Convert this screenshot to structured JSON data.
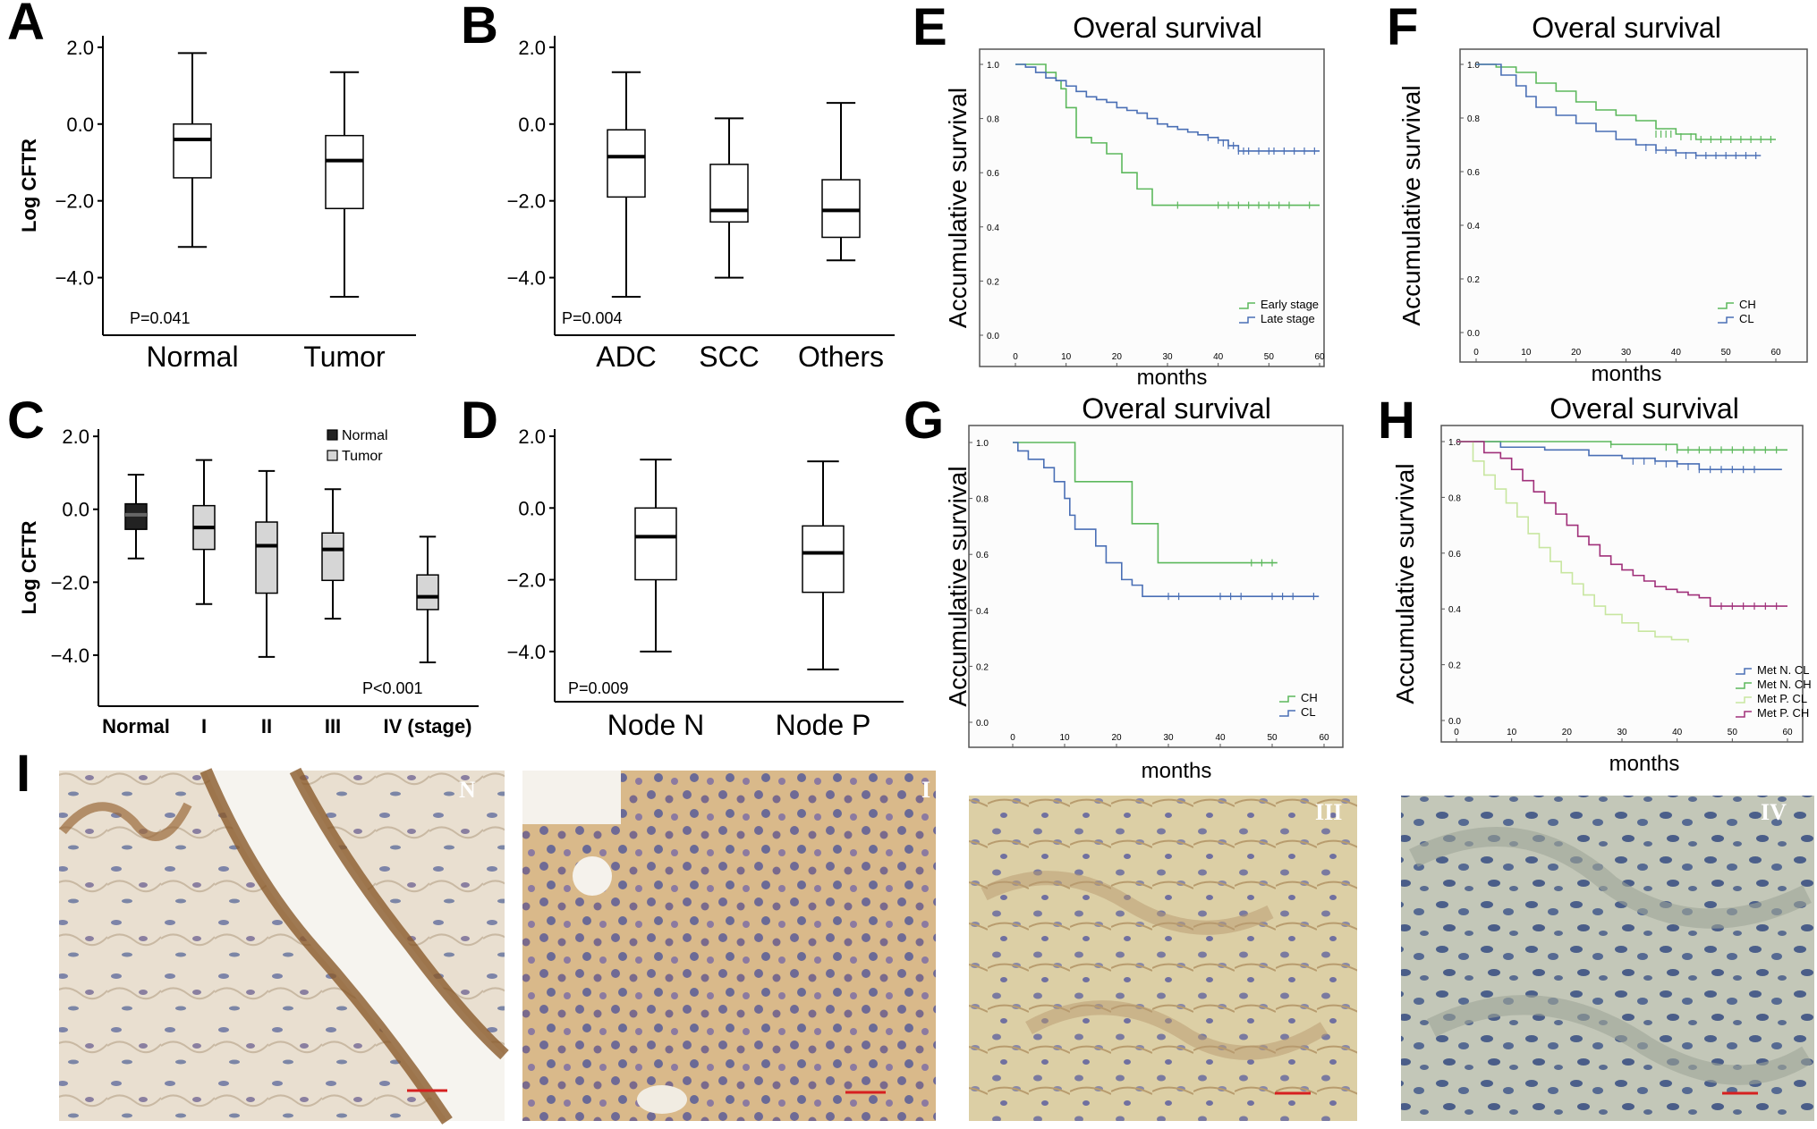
{
  "panel_labels": [
    "A",
    "B",
    "C",
    "D",
    "E",
    "F",
    "G",
    "H",
    "I"
  ],
  "colors": {
    "green": "#5cb85c",
    "blue": "#4a6fb5",
    "lightgreen": "#c8e6a0",
    "magenta": "#a0307a",
    "box_fill_gray": "#d6d6d6",
    "box_fill_dark": "#222222"
  },
  "chart_data": [
    {
      "id": "A",
      "type": "box",
      "xlabel": "",
      "ylabel": "Log CFTR",
      "ylim": [
        -5.5,
        2.3
      ],
      "yticks": [
        -4,
        -2,
        0,
        2
      ],
      "ytick_labels": [
        "−4.0",
        "−2.0",
        "0.0",
        "2.0"
      ],
      "annotation": "P=0.041",
      "categories": [
        "Normal",
        "Tumor"
      ],
      "boxes": [
        {
          "min": -3.2,
          "q1": -1.4,
          "median": -0.4,
          "q3": 0.0,
          "max": 1.85,
          "fill": "none"
        },
        {
          "min": -4.5,
          "q1": -2.2,
          "median": -0.95,
          "q3": -0.3,
          "max": 1.35,
          "fill": "none"
        }
      ]
    },
    {
      "id": "B",
      "type": "box",
      "xlabel": "",
      "ylabel": "",
      "ylim": [
        -5.5,
        2.3
      ],
      "yticks": [
        -4,
        -2,
        0,
        2
      ],
      "ytick_labels": [
        "−4.0",
        "−2.0",
        "0.0",
        "2.0"
      ],
      "annotation": "P=0.004",
      "categories": [
        "ADC",
        "SCC",
        "Others"
      ],
      "boxes": [
        {
          "min": -4.5,
          "q1": -1.9,
          "median": -0.85,
          "q3": -0.15,
          "max": 1.35,
          "fill": "none"
        },
        {
          "min": -4.0,
          "q1": -2.55,
          "median": -2.25,
          "q3": -1.05,
          "max": 0.15,
          "fill": "none"
        },
        {
          "min": -3.55,
          "q1": -2.95,
          "median": -2.25,
          "q3": -1.45,
          "max": 0.55,
          "fill": "none"
        }
      ]
    },
    {
      "id": "C",
      "type": "box",
      "xlabel": "",
      "ylabel": "Log CFTR",
      "ylim": [
        -5.4,
        2.2
      ],
      "yticks": [
        -4,
        -2,
        0,
        2
      ],
      "ytick_labels": [
        "−4.0",
        "−2.0",
        "0.0",
        "2.0"
      ],
      "annotation": "P<0.001",
      "legend": [
        {
          "name": "Normal",
          "fill": "dark"
        },
        {
          "name": "Tumor",
          "fill": "gray"
        }
      ],
      "categories": [
        "Normal",
        "I",
        "II",
        "III",
        "IV (stage)"
      ],
      "boxes": [
        {
          "min": -1.35,
          "q1": -0.55,
          "median": -0.15,
          "q3": 0.15,
          "max": 0.95,
          "fill": "dark"
        },
        {
          "min": -2.6,
          "q1": -1.1,
          "median": -0.5,
          "q3": 0.1,
          "max": 1.35,
          "fill": "gray"
        },
        {
          "min": -4.05,
          "q1": -2.3,
          "median": -1.0,
          "q3": -0.35,
          "max": 1.05,
          "fill": "gray"
        },
        {
          "min": -3.0,
          "q1": -1.95,
          "median": -1.1,
          "q3": -0.65,
          "max": 0.55,
          "fill": "gray"
        },
        {
          "min": -4.2,
          "q1": -2.75,
          "median": -2.4,
          "q3": -1.8,
          "max": -0.75,
          "fill": "gray"
        }
      ]
    },
    {
      "id": "D",
      "type": "box",
      "xlabel": "",
      "ylabel": "",
      "ylim": [
        -5.4,
        2.2
      ],
      "yticks": [
        -4,
        -2,
        0,
        2
      ],
      "ytick_labels": [
        "−4.0",
        "−2.0",
        "0.0",
        "2.0"
      ],
      "annotation": "P=0.009",
      "categories": [
        "Node N",
        "Node P"
      ],
      "boxes": [
        {
          "min": -4.0,
          "q1": -2.0,
          "median": -0.8,
          "q3": 0.0,
          "max": 1.35,
          "fill": "none"
        },
        {
          "min": -4.5,
          "q1": -2.35,
          "median": -1.25,
          "q3": -0.5,
          "max": 1.3,
          "fill": "none"
        }
      ]
    },
    {
      "id": "E",
      "type": "line",
      "title": "Overal survival",
      "xlabel": "months",
      "ylabel": "Accumulative survival",
      "xlim": [
        0,
        60
      ],
      "ylim": [
        0,
        1.0
      ],
      "xticks": [
        0,
        10,
        20,
        30,
        40,
        50,
        60
      ],
      "yticks": [
        0.0,
        0.2,
        0.4,
        0.6,
        0.8,
        1.0
      ],
      "ytick_labels": [
        "0.0",
        "0.2",
        "0.4",
        "0.6",
        "0.8",
        "1.0"
      ],
      "legend": [
        "Early stage",
        "Late stage"
      ],
      "series": [
        {
          "name": "Early stage",
          "color": "#5cb85c",
          "x": [
            0,
            6,
            8,
            9,
            10,
            12,
            15,
            18,
            21,
            24,
            27,
            60
          ],
          "y": [
            1.0,
            0.97,
            0.94,
            0.91,
            0.84,
            0.73,
            0.71,
            0.67,
            0.6,
            0.54,
            0.48,
            0.48
          ],
          "censor": [
            [
              32,
              0.48
            ],
            [
              40,
              0.48
            ],
            [
              42,
              0.48
            ],
            [
              44,
              0.48
            ],
            [
              46,
              0.48
            ],
            [
              48,
              0.48
            ],
            [
              50,
              0.48
            ],
            [
              52,
              0.48
            ],
            [
              54,
              0.48
            ],
            [
              58,
              0.48
            ]
          ]
        },
        {
          "name": "Late stage",
          "color": "#4a6fb5",
          "x": [
            0,
            2,
            4,
            6,
            8,
            10,
            12,
            14,
            16,
            18,
            20,
            22,
            24,
            26,
            28,
            30,
            32,
            34,
            36,
            38,
            40,
            42,
            44,
            60
          ],
          "y": [
            1.0,
            0.99,
            0.97,
            0.95,
            0.94,
            0.92,
            0.9,
            0.88,
            0.87,
            0.86,
            0.84,
            0.83,
            0.82,
            0.8,
            0.78,
            0.77,
            0.76,
            0.75,
            0.74,
            0.73,
            0.72,
            0.7,
            0.68,
            0.68
          ],
          "censor": [
            [
              38,
              0.73
            ],
            [
              40,
              0.72
            ],
            [
              41,
              0.71
            ],
            [
              42,
              0.7
            ],
            [
              43,
              0.7
            ],
            [
              44,
              0.68
            ],
            [
              45,
              0.68
            ],
            [
              46,
              0.68
            ],
            [
              48,
              0.68
            ],
            [
              50,
              0.68
            ],
            [
              51,
              0.68
            ],
            [
              53,
              0.68
            ],
            [
              55,
              0.68
            ],
            [
              57,
              0.68
            ],
            [
              59,
              0.68
            ]
          ]
        }
      ]
    },
    {
      "id": "F",
      "type": "line",
      "title": "Overal survival",
      "xlabel": "months",
      "ylabel": "Accumulative survival",
      "xlim": [
        0,
        60
      ],
      "ylim": [
        0,
        1.0
      ],
      "xticks": [
        0,
        10,
        20,
        30,
        40,
        50,
        60
      ],
      "yticks": [
        0.0,
        0.2,
        0.4,
        0.6,
        0.8,
        1.0
      ],
      "ytick_labels": [
        "0.0",
        "0.2",
        "0.4",
        "0.6",
        "0.8",
        "1.0"
      ],
      "legend": [
        "CH",
        "CL"
      ],
      "series": [
        {
          "name": "CH",
          "color": "#5cb85c",
          "x": [
            0,
            4,
            8,
            12,
            16,
            20,
            24,
            28,
            32,
            36,
            40,
            44,
            60
          ],
          "y": [
            1.0,
            0.99,
            0.97,
            0.93,
            0.9,
            0.86,
            0.83,
            0.81,
            0.79,
            0.76,
            0.74,
            0.72,
            0.72
          ],
          "censor": [
            [
              36,
              0.74
            ],
            [
              37,
              0.74
            ],
            [
              38,
              0.74
            ],
            [
              39,
              0.74
            ],
            [
              41,
              0.73
            ],
            [
              43,
              0.73
            ],
            [
              45,
              0.72
            ],
            [
              47,
              0.72
            ],
            [
              49,
              0.72
            ],
            [
              51,
              0.72
            ],
            [
              53,
              0.72
            ],
            [
              55,
              0.72
            ],
            [
              57,
              0.72
            ],
            [
              59,
              0.72
            ]
          ]
        },
        {
          "name": "CL",
          "color": "#4a6fb5",
          "x": [
            0,
            5,
            8,
            10,
            12,
            16,
            20,
            24,
            28,
            32,
            36,
            40,
            44,
            57
          ],
          "y": [
            1.0,
            0.96,
            0.92,
            0.88,
            0.84,
            0.81,
            0.78,
            0.75,
            0.72,
            0.7,
            0.68,
            0.67,
            0.66,
            0.66
          ],
          "censor": [
            [
              34,
              0.69
            ],
            [
              36,
              0.68
            ],
            [
              38,
              0.68
            ],
            [
              40,
              0.67
            ],
            [
              42,
              0.66
            ],
            [
              44,
              0.66
            ],
            [
              46,
              0.66
            ],
            [
              48,
              0.66
            ],
            [
              50,
              0.66
            ],
            [
              52,
              0.66
            ],
            [
              54,
              0.66
            ],
            [
              56,
              0.66
            ]
          ]
        }
      ]
    },
    {
      "id": "G",
      "type": "line",
      "title": "Overal survival",
      "xlabel": "months",
      "ylabel": "Accumulative survival",
      "xlim": [
        0,
        60
      ],
      "ylim": [
        0,
        1.0
      ],
      "xticks": [
        0,
        10,
        20,
        30,
        40,
        50,
        60
      ],
      "yticks": [
        0.0,
        0.2,
        0.4,
        0.6,
        0.8,
        1.0
      ],
      "ytick_labels": [
        "0.0",
        "0.2",
        "0.4",
        "0.6",
        "0.8",
        "1.0"
      ],
      "legend": [
        "CH",
        "CL"
      ],
      "series": [
        {
          "name": "CH",
          "color": "#5cb85c",
          "x": [
            0,
            12,
            23,
            28,
            51
          ],
          "y": [
            1.0,
            0.86,
            0.71,
            0.57,
            0.57
          ],
          "censor": [
            [
              46,
              0.57
            ],
            [
              48,
              0.57
            ],
            [
              50,
              0.57
            ]
          ]
        },
        {
          "name": "CL",
          "color": "#4a6fb5",
          "x": [
            0,
            1,
            3,
            6,
            8,
            10,
            11,
            12,
            16,
            18,
            21,
            23,
            25,
            59
          ],
          "y": [
            1.0,
            0.97,
            0.94,
            0.91,
            0.86,
            0.8,
            0.74,
            0.69,
            0.63,
            0.57,
            0.51,
            0.49,
            0.45,
            0.45
          ],
          "censor": [
            [
              30,
              0.45
            ],
            [
              32,
              0.45
            ],
            [
              40,
              0.45
            ],
            [
              42,
              0.45
            ],
            [
              44,
              0.45
            ],
            [
              50,
              0.45
            ],
            [
              52,
              0.45
            ],
            [
              54,
              0.45
            ],
            [
              58,
              0.45
            ]
          ]
        }
      ]
    },
    {
      "id": "H",
      "type": "line",
      "title": "Overal survival",
      "xlabel": "months",
      "ylabel": "Accumulative survival",
      "xlim": [
        0,
        60
      ],
      "ylim": [
        0,
        1.0
      ],
      "xticks": [
        0,
        10,
        20,
        30,
        40,
        50,
        60
      ],
      "yticks": [
        0.0,
        0.2,
        0.4,
        0.6,
        0.8,
        1.0
      ],
      "ytick_labels": [
        "0.0",
        "0.2",
        "0.4",
        "0.6",
        "0.8",
        "1.0"
      ],
      "legend": [
        "Met N. CL",
        "Met N. CH",
        "Met P. CL",
        "Met P. CH"
      ],
      "series": [
        {
          "name": "Met N. CL",
          "color": "#4a6fb5",
          "x": [
            0,
            8,
            16,
            24,
            30,
            36,
            40,
            44,
            59
          ],
          "y": [
            1.0,
            0.98,
            0.97,
            0.95,
            0.94,
            0.93,
            0.92,
            0.9,
            0.9
          ],
          "censor": [
            [
              32,
              0.93
            ],
            [
              34,
              0.93
            ],
            [
              36,
              0.93
            ],
            [
              38,
              0.92
            ],
            [
              40,
              0.92
            ],
            [
              42,
              0.91
            ],
            [
              44,
              0.9
            ],
            [
              46,
              0.9
            ],
            [
              48,
              0.9
            ],
            [
              50,
              0.9
            ],
            [
              52,
              0.9
            ],
            [
              54,
              0.9
            ]
          ]
        },
        {
          "name": "Met N. CH",
          "color": "#5cb85c",
          "x": [
            0,
            28,
            40,
            60
          ],
          "y": [
            1.0,
            0.99,
            0.97,
            0.97
          ],
          "censor": [
            [
              28,
              0.99
            ],
            [
              38,
              0.98
            ],
            [
              40,
              0.97
            ],
            [
              42,
              0.97
            ],
            [
              44,
              0.97
            ],
            [
              46,
              0.97
            ],
            [
              48,
              0.97
            ],
            [
              50,
              0.97
            ],
            [
              52,
              0.97
            ],
            [
              54,
              0.97
            ],
            [
              56,
              0.97
            ],
            [
              58,
              0.97
            ]
          ]
        },
        {
          "name": "Met P. CL",
          "color": "#c8e6a0",
          "x": [
            0,
            3,
            5,
            7,
            9,
            11,
            13,
            15,
            17,
            19,
            21,
            23,
            25,
            27,
            30,
            33,
            36,
            39,
            42
          ],
          "y": [
            1.0,
            0.93,
            0.88,
            0.83,
            0.78,
            0.73,
            0.67,
            0.62,
            0.57,
            0.53,
            0.49,
            0.45,
            0.41,
            0.38,
            0.35,
            0.32,
            0.3,
            0.29,
            0.28
          ],
          "censor": []
        },
        {
          "name": "Met P. CH",
          "color": "#a0307a",
          "x": [
            0,
            5,
            8,
            10,
            12,
            14,
            16,
            18,
            20,
            22,
            24,
            26,
            28,
            30,
            32,
            34,
            36,
            38,
            40,
            42,
            44,
            46,
            60
          ],
          "y": [
            1.0,
            0.96,
            0.94,
            0.9,
            0.86,
            0.82,
            0.78,
            0.74,
            0.7,
            0.66,
            0.63,
            0.59,
            0.56,
            0.54,
            0.52,
            0.5,
            0.48,
            0.47,
            0.46,
            0.45,
            0.44,
            0.41,
            0.41
          ],
          "censor": [
            [
              48,
              0.41
            ],
            [
              50,
              0.41
            ],
            [
              52,
              0.41
            ],
            [
              54,
              0.41
            ],
            [
              56,
              0.41
            ],
            [
              58,
              0.41
            ]
          ]
        }
      ]
    }
  ],
  "histology": [
    {
      "label": "N"
    },
    {
      "label": "I"
    },
    {
      "label": "III"
    },
    {
      "label": "IV"
    }
  ]
}
